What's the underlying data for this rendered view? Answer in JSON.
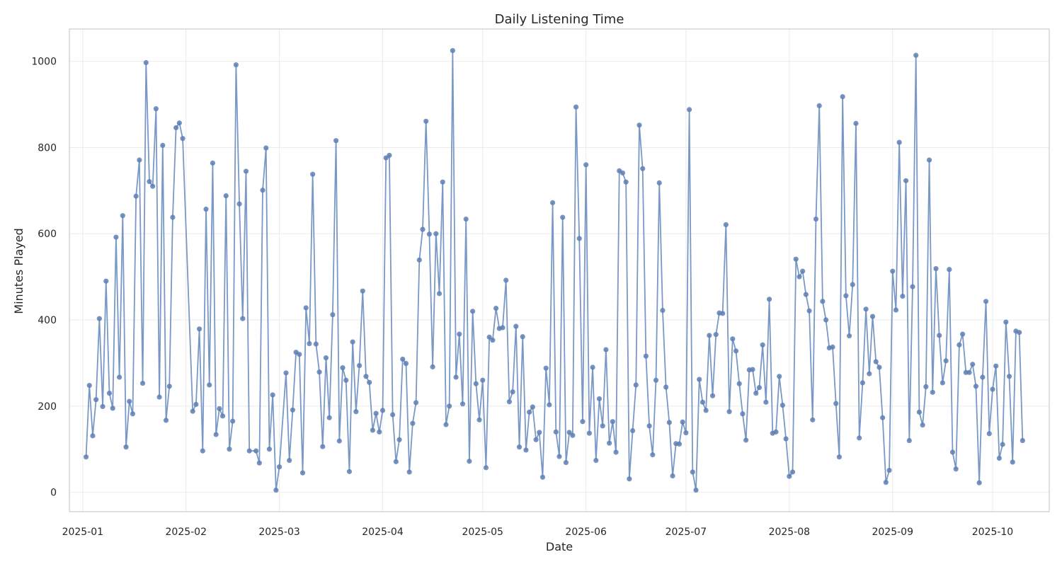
{
  "chart_data": {
    "type": "line",
    "title": "Daily Listening Time",
    "xlabel": "Date",
    "ylabel": "Minutes Played",
    "x_axis_type": "date",
    "xlim": [
      "2024-12-28",
      "2025-10-18"
    ],
    "ylim": [
      -45,
      1075
    ],
    "grid": true,
    "legend": null,
    "line_color": "#7a98c6",
    "marker_color": "#5e7fb4",
    "x_ticks": [
      {
        "label": "2025-01",
        "date": "2025-01-01"
      },
      {
        "label": "2025-02",
        "date": "2025-02-01"
      },
      {
        "label": "2025-03",
        "date": "2025-03-01"
      },
      {
        "label": "2025-04",
        "date": "2025-04-01"
      },
      {
        "label": "2025-05",
        "date": "2025-05-01"
      },
      {
        "label": "2025-06",
        "date": "2025-06-01"
      },
      {
        "label": "2025-07",
        "date": "2025-07-01"
      },
      {
        "label": "2025-08",
        "date": "2025-08-01"
      },
      {
        "label": "2025-09",
        "date": "2025-09-01"
      },
      {
        "label": "2025-10",
        "date": "2025-10-01"
      }
    ],
    "y_ticks": [
      0,
      200,
      400,
      600,
      800,
      1000
    ],
    "series": [
      {
        "points": [
          [
            "2025-01-02",
            82
          ],
          [
            "2025-01-03",
            248
          ],
          [
            "2025-01-04",
            131
          ],
          [
            "2025-01-05",
            215
          ],
          [
            "2025-01-06",
            403
          ],
          [
            "2025-01-07",
            199
          ],
          [
            "2025-01-08",
            490
          ],
          [
            "2025-01-09",
            230
          ],
          [
            "2025-01-10",
            195
          ],
          [
            "2025-01-11",
            592
          ],
          [
            "2025-01-12",
            267
          ],
          [
            "2025-01-13",
            642
          ],
          [
            "2025-01-14",
            105
          ],
          [
            "2025-01-15",
            211
          ],
          [
            "2025-01-16",
            182
          ],
          [
            "2025-01-17",
            687
          ],
          [
            "2025-01-18",
            771
          ],
          [
            "2025-01-19",
            253
          ],
          [
            "2025-01-20",
            997
          ],
          [
            "2025-01-21",
            721
          ],
          [
            "2025-01-22",
            710
          ],
          [
            "2025-01-23",
            890
          ],
          [
            "2025-01-24",
            221
          ],
          [
            "2025-01-25",
            805
          ],
          [
            "2025-01-26",
            167
          ],
          [
            "2025-01-27",
            246
          ],
          [
            "2025-01-28",
            638
          ],
          [
            "2025-01-29",
            846
          ],
          [
            "2025-01-30",
            857
          ],
          [
            "2025-01-31",
            821
          ],
          [
            "2025-02-03",
            188
          ],
          [
            "2025-02-04",
            204
          ],
          [
            "2025-02-05",
            379
          ],
          [
            "2025-02-06",
            96
          ],
          [
            "2025-02-07",
            657
          ],
          [
            "2025-02-08",
            249
          ],
          [
            "2025-02-09",
            764
          ],
          [
            "2025-02-10",
            134
          ],
          [
            "2025-02-11",
            194
          ],
          [
            "2025-02-12",
            177
          ],
          [
            "2025-02-13",
            688
          ],
          [
            "2025-02-14",
            100
          ],
          [
            "2025-02-15",
            165
          ],
          [
            "2025-02-16",
            992
          ],
          [
            "2025-02-17",
            669
          ],
          [
            "2025-02-18",
            403
          ],
          [
            "2025-02-19",
            745
          ],
          [
            "2025-02-20",
            96
          ],
          [
            "2025-02-22",
            96
          ],
          [
            "2025-02-23",
            68
          ],
          [
            "2025-02-24",
            701
          ],
          [
            "2025-02-25",
            799
          ],
          [
            "2025-02-26",
            100
          ],
          [
            "2025-02-27",
            226
          ],
          [
            "2025-02-28",
            5
          ],
          [
            "2025-03-01",
            59
          ],
          [
            "2025-03-03",
            277
          ],
          [
            "2025-03-04",
            74
          ],
          [
            "2025-03-05",
            191
          ],
          [
            "2025-03-06",
            325
          ],
          [
            "2025-03-07",
            320
          ],
          [
            "2025-03-08",
            45
          ],
          [
            "2025-03-09",
            428
          ],
          [
            "2025-03-10",
            345
          ],
          [
            "2025-03-11",
            738
          ],
          [
            "2025-03-12",
            344
          ],
          [
            "2025-03-13",
            279
          ],
          [
            "2025-03-14",
            106
          ],
          [
            "2025-03-15",
            312
          ],
          [
            "2025-03-16",
            173
          ],
          [
            "2025-03-17",
            412
          ],
          [
            "2025-03-18",
            816
          ],
          [
            "2025-03-19",
            119
          ],
          [
            "2025-03-20",
            289
          ],
          [
            "2025-03-21",
            260
          ],
          [
            "2025-03-22",
            48
          ],
          [
            "2025-03-23",
            349
          ],
          [
            "2025-03-24",
            187
          ],
          [
            "2025-03-25",
            294
          ],
          [
            "2025-03-26",
            467
          ],
          [
            "2025-03-27",
            269
          ],
          [
            "2025-03-28",
            255
          ],
          [
            "2025-03-29",
            144
          ],
          [
            "2025-03-30",
            183
          ],
          [
            "2025-03-31",
            140
          ],
          [
            "2025-04-01",
            190
          ],
          [
            "2025-04-02",
            776
          ],
          [
            "2025-04-03",
            782
          ],
          [
            "2025-04-04",
            180
          ],
          [
            "2025-04-05",
            71
          ],
          [
            "2025-04-06",
            122
          ],
          [
            "2025-04-07",
            309
          ],
          [
            "2025-04-08",
            299
          ],
          [
            "2025-04-09",
            47
          ],
          [
            "2025-04-10",
            160
          ],
          [
            "2025-04-11",
            208
          ],
          [
            "2025-04-12",
            539
          ],
          [
            "2025-04-13",
            610
          ],
          [
            "2025-04-14",
            861
          ],
          [
            "2025-04-15",
            599
          ],
          [
            "2025-04-16",
            291
          ],
          [
            "2025-04-17",
            600
          ],
          [
            "2025-04-18",
            461
          ],
          [
            "2025-04-19",
            720
          ],
          [
            "2025-04-20",
            157
          ],
          [
            "2025-04-21",
            200
          ],
          [
            "2025-04-22",
            1025
          ],
          [
            "2025-04-23",
            267
          ],
          [
            "2025-04-24",
            367
          ],
          [
            "2025-04-25",
            205
          ],
          [
            "2025-04-26",
            634
          ],
          [
            "2025-04-27",
            72
          ],
          [
            "2025-04-28",
            420
          ],
          [
            "2025-04-29",
            252
          ],
          [
            "2025-04-30",
            168
          ],
          [
            "2025-05-01",
            260
          ],
          [
            "2025-05-02",
            57
          ],
          [
            "2025-05-03",
            360
          ],
          [
            "2025-05-04",
            353
          ],
          [
            "2025-05-05",
            427
          ],
          [
            "2025-05-06",
            380
          ],
          [
            "2025-05-07",
            382
          ],
          [
            "2025-05-08",
            492
          ],
          [
            "2025-05-09",
            210
          ],
          [
            "2025-05-10",
            233
          ],
          [
            "2025-05-11",
            385
          ],
          [
            "2025-05-12",
            105
          ],
          [
            "2025-05-13",
            361
          ],
          [
            "2025-05-14",
            98
          ],
          [
            "2025-05-15",
            186
          ],
          [
            "2025-05-16",
            198
          ],
          [
            "2025-05-17",
            122
          ],
          [
            "2025-05-18",
            139
          ],
          [
            "2025-05-19",
            35
          ],
          [
            "2025-05-20",
            288
          ],
          [
            "2025-05-21",
            203
          ],
          [
            "2025-05-22",
            672
          ],
          [
            "2025-05-23",
            140
          ],
          [
            "2025-05-24",
            83
          ],
          [
            "2025-05-25",
            638
          ],
          [
            "2025-05-26",
            69
          ],
          [
            "2025-05-27",
            139
          ],
          [
            "2025-05-28",
            132
          ],
          [
            "2025-05-29",
            894
          ],
          [
            "2025-05-30",
            589
          ],
          [
            "2025-05-31",
            164
          ],
          [
            "2025-06-01",
            760
          ],
          [
            "2025-06-02",
            137
          ],
          [
            "2025-06-03",
            290
          ],
          [
            "2025-06-04",
            74
          ],
          [
            "2025-06-05",
            217
          ],
          [
            "2025-06-06",
            154
          ],
          [
            "2025-06-07",
            331
          ],
          [
            "2025-06-08",
            114
          ],
          [
            "2025-06-09",
            164
          ],
          [
            "2025-06-10",
            93
          ],
          [
            "2025-06-11",
            746
          ],
          [
            "2025-06-12",
            741
          ],
          [
            "2025-06-13",
            720
          ],
          [
            "2025-06-14",
            31
          ],
          [
            "2025-06-15",
            143
          ],
          [
            "2025-06-16",
            249
          ],
          [
            "2025-06-17",
            852
          ],
          [
            "2025-06-18",
            751
          ],
          [
            "2025-06-19",
            316
          ],
          [
            "2025-06-20",
            154
          ],
          [
            "2025-06-21",
            87
          ],
          [
            "2025-06-22",
            260
          ],
          [
            "2025-06-23",
            718
          ],
          [
            "2025-06-24",
            422
          ],
          [
            "2025-06-25",
            244
          ],
          [
            "2025-06-26",
            162
          ],
          [
            "2025-06-27",
            38
          ],
          [
            "2025-06-28",
            113
          ],
          [
            "2025-06-29",
            112
          ],
          [
            "2025-06-30",
            163
          ],
          [
            "2025-07-01",
            138
          ],
          [
            "2025-07-02",
            888
          ],
          [
            "2025-07-03",
            47
          ],
          [
            "2025-07-04",
            5
          ],
          [
            "2025-07-05",
            262
          ],
          [
            "2025-07-06",
            209
          ],
          [
            "2025-07-07",
            190
          ],
          [
            "2025-07-08",
            364
          ],
          [
            "2025-07-09",
            224
          ],
          [
            "2025-07-10",
            366
          ],
          [
            "2025-07-11",
            416
          ],
          [
            "2025-07-12",
            415
          ],
          [
            "2025-07-13",
            621
          ],
          [
            "2025-07-14",
            187
          ],
          [
            "2025-07-15",
            356
          ],
          [
            "2025-07-16",
            328
          ],
          [
            "2025-07-17",
            252
          ],
          [
            "2025-07-18",
            182
          ],
          [
            "2025-07-19",
            121
          ],
          [
            "2025-07-20",
            284
          ],
          [
            "2025-07-21",
            285
          ],
          [
            "2025-07-22",
            230
          ],
          [
            "2025-07-23",
            243
          ],
          [
            "2025-07-24",
            342
          ],
          [
            "2025-07-25",
            209
          ],
          [
            "2025-07-26",
            448
          ],
          [
            "2025-07-27",
            137
          ],
          [
            "2025-07-28",
            140
          ],
          [
            "2025-07-29",
            269
          ],
          [
            "2025-07-30",
            202
          ],
          [
            "2025-07-31",
            124
          ],
          [
            "2025-08-01",
            37
          ],
          [
            "2025-08-02",
            47
          ],
          [
            "2025-08-03",
            541
          ],
          [
            "2025-08-04",
            500
          ],
          [
            "2025-08-05",
            513
          ],
          [
            "2025-08-06",
            459
          ],
          [
            "2025-08-07",
            421
          ],
          [
            "2025-08-08",
            168
          ],
          [
            "2025-08-09",
            634
          ],
          [
            "2025-08-10",
            897
          ],
          [
            "2025-08-11",
            443
          ],
          [
            "2025-08-12",
            400
          ],
          [
            "2025-08-13",
            335
          ],
          [
            "2025-08-14",
            337
          ],
          [
            "2025-08-15",
            206
          ],
          [
            "2025-08-16",
            82
          ],
          [
            "2025-08-17",
            918
          ],
          [
            "2025-08-18",
            456
          ],
          [
            "2025-08-19",
            363
          ],
          [
            "2025-08-20",
            482
          ],
          [
            "2025-08-21",
            856
          ],
          [
            "2025-08-22",
            126
          ],
          [
            "2025-08-23",
            254
          ],
          [
            "2025-08-24",
            425
          ],
          [
            "2025-08-25",
            275
          ],
          [
            "2025-08-26",
            408
          ],
          [
            "2025-08-27",
            303
          ],
          [
            "2025-08-28",
            290
          ],
          [
            "2025-08-29",
            173
          ],
          [
            "2025-08-30",
            23
          ],
          [
            "2025-08-31",
            51
          ],
          [
            "2025-09-01",
            513
          ],
          [
            "2025-09-02",
            423
          ],
          [
            "2025-09-03",
            812
          ],
          [
            "2025-09-04",
            455
          ],
          [
            "2025-09-05",
            723
          ],
          [
            "2025-09-06",
            120
          ],
          [
            "2025-09-07",
            477
          ],
          [
            "2025-09-08",
            1014
          ],
          [
            "2025-09-09",
            186
          ],
          [
            "2025-09-10",
            156
          ],
          [
            "2025-09-11",
            245
          ],
          [
            "2025-09-12",
            771
          ],
          [
            "2025-09-13",
            232
          ],
          [
            "2025-09-14",
            519
          ],
          [
            "2025-09-15",
            364
          ],
          [
            "2025-09-16",
            254
          ],
          [
            "2025-09-17",
            305
          ],
          [
            "2025-09-18",
            517
          ],
          [
            "2025-09-19",
            93
          ],
          [
            "2025-09-20",
            54
          ],
          [
            "2025-09-21",
            342
          ],
          [
            "2025-09-22",
            367
          ],
          [
            "2025-09-23",
            278
          ],
          [
            "2025-09-24",
            278
          ],
          [
            "2025-09-25",
            297
          ],
          [
            "2025-09-26",
            246
          ],
          [
            "2025-09-27",
            22
          ],
          [
            "2025-09-28",
            267
          ],
          [
            "2025-09-29",
            443
          ],
          [
            "2025-09-30",
            136
          ],
          [
            "2025-10-01",
            239
          ],
          [
            "2025-10-02",
            293
          ],
          [
            "2025-10-03",
            79
          ],
          [
            "2025-10-04",
            111
          ],
          [
            "2025-10-05",
            395
          ],
          [
            "2025-10-06",
            269
          ],
          [
            "2025-10-07",
            70
          ],
          [
            "2025-10-08",
            374
          ],
          [
            "2025-10-09",
            371
          ],
          [
            "2025-10-10",
            120
          ]
        ]
      }
    ]
  }
}
